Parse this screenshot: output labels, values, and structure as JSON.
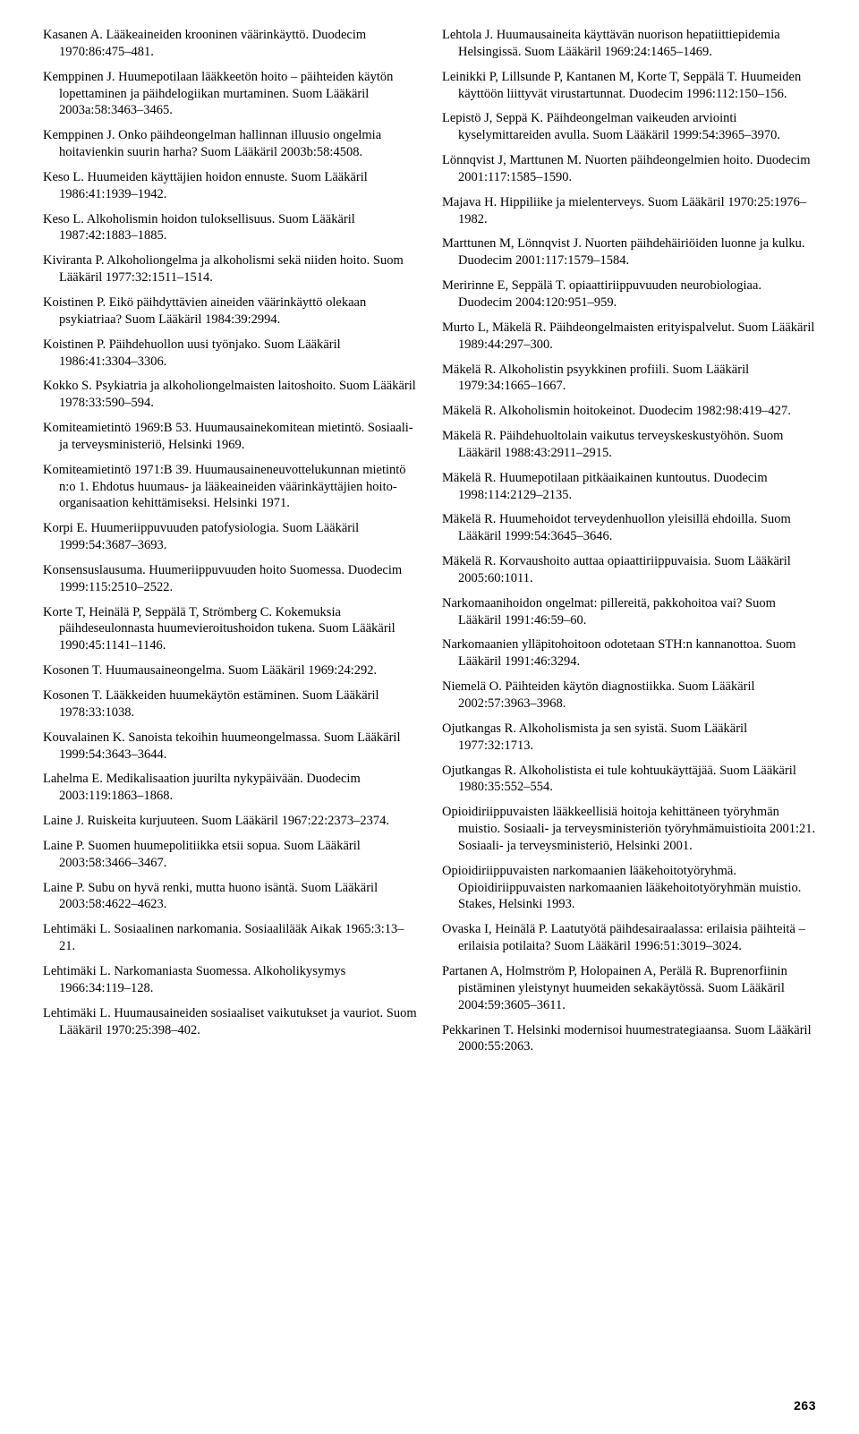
{
  "page_number": "263",
  "columns": {
    "left": [
      "Kasanen A. Lääkeaineiden krooninen väärinkäyttö. Duodecim 1970:86:475–481.",
      "Kemppinen J. Huumepotilaan lääkkeetön hoito – päihteiden käytön lopettaminen ja päihdelogiikan murtaminen. Suom Lääkäril 2003a:58:3463–3465.",
      "Kemppinen J. Onko päihdeongelman hallinnan illuusio ongelmia hoitavienkin suurin harha? Suom Lääkäril 2003b:58:4508.",
      "Keso L. Huumeiden käyttäjien hoidon ennuste. Suom Lääkäril 1986:41:1939–1942.",
      "Keso L. Alkoholismin hoidon tuloksellisuus. Suom Lääkäril 1987:42:1883–1885.",
      "Kiviranta P. Alkoholiongelma ja alkoholismi sekä niiden hoito. Suom Lääkäril 1977:32:1511–1514.",
      "Koistinen P. Eikö päihdyttävien aineiden väärinkäyttö olekaan psykiatriaa? Suom Lääkäril 1984:39:2994.",
      "Koistinen P. Päihdehuollon uusi työnjako. Suom Lääkäril 1986:41:3304–3306.",
      "Kokko S. Psykiatria ja alkoholiongelmaisten laitoshoito. Suom Lääkäril 1978:33:590–594.",
      "Komiteamietintö 1969:B 53. Huumausainekomitean mietintö. Sosiaali- ja terveysministeriö, Helsinki 1969.",
      "Komiteamietintö 1971:B 39. Huumausaineneuvottelukunnan mietintö n:o 1. Ehdotus huumaus- ja lääkeaineiden väärinkäyttäjien hoito-organisaation kehittämiseksi. Helsinki 1971.",
      "Korpi E. Huumeriippuvuuden patofysiologia. Suom Lääkäril 1999:54:3687–3693.",
      "Konsensuslausuma. Huumeriippuvuuden hoito Suomessa. Duodecim 1999:115:2510–2522.",
      "Korte T, Heinälä P, Seppälä T, Strömberg C. Kokemuksia päihdeseulonnasta huumevieroitushoidon tukena. Suom Lääkäril 1990:45:1141–1146.",
      "Kosonen T. Huumausaineongelma. Suom Lääkäril 1969:24:292.",
      "Kosonen T. Lääkkeiden huumekäytön estäminen. Suom Lääkäril 1978:33:1038.",
      "Kouvalainen K. Sanoista tekoihin huumeongelmassa. Suom Lääkäril 1999:54:3643–3644.",
      "Lahelma E. Medikalisaation juurilta nykypäivään. Duodecim 2003:119:1863–1868.",
      "Laine J. Ruiskeita kurjuuteen. Suom Lääkäril 1967:22:2373–2374.",
      "Laine P. Suomen huumepolitiikka etsii sopua. Suom Lääkäril 2003:58:3466–3467.",
      "Laine P. Subu on hyvä renki, mutta huono isäntä. Suom Lääkäril 2003:58:4622–4623.",
      "Lehtimäki L. Sosiaalinen narkomania. Sosiaalilääk Aikak 1965:3:13–21.",
      "Lehtimäki L. Narkomaniasta Suomessa. Alkoholikysymys 1966:34:119–128.",
      "Lehtimäki L. Huumausaineiden sosiaaliset vaikutukset ja vauriot. Suom Lääkäril 1970:25:398–402."
    ],
    "right": [
      "Lehtola J. Huumausaineita käyttävän nuorison hepatiittiepidemia Helsingissä. Suom Lääkäril 1969:24:1465–1469.",
      "Leinikki P, Lillsunde P, Kantanen M, Korte T, Seppälä T. Huumeiden käyttöön liittyvät virustartunnat. Duodecim 1996:112:150–156.",
      "Lepistö J, Seppä K. Päihdeongelman vaikeuden arviointi kyselymittareiden avulla. Suom Lääkäril 1999:54:3965–3970.",
      "Lönnqvist J, Marttunen M. Nuorten päihdeongelmien hoito. Duodecim 2001:117:1585–1590.",
      "Majava H. Hippiliike ja mielenterveys. Suom Lääkäril 1970:25:1976–1982.",
      "Marttunen M, Lönnqvist J. Nuorten päihdehäiriöiden luonne ja kulku. Duodecim 2001:117:1579–1584.",
      "Meririnne E, Seppälä T. opiaattiriippuvuuden neurobiologiaa. Duodecim 2004:120:951–959.",
      "Murto L, Mäkelä R. Päihdeongelmaisten erityispalvelut. Suom Lääkäril 1989:44:297–300.",
      "Mäkelä R. Alkoholistin psyykkinen profiili. Suom Lääkäril 1979:34:1665–1667.",
      "Mäkelä R. Alkoholismin hoitokeinot. Duodecim 1982:98:419–427.",
      "Mäkelä R. Päihdehuoltolain vaikutus terveyskeskustyöhön. Suom Lääkäril 1988:43:2911–2915.",
      "Mäkelä R. Huumepotilaan pitkäaikainen kuntoutus. Duodecim 1998:114:2129–2135.",
      "Mäkelä R. Huumehoidot terveydenhuollon yleisillä ehdoilla. Suom Lääkäril 1999:54:3645–3646.",
      "Mäkelä R. Korvaushoito auttaa opiaattiriippuvaisia. Suom Lääkäril 2005:60:1011.",
      "Narkomaanihoidon ongelmat: pillereitä, pakkohoitoa vai? Suom Lääkäril 1991:46:59–60.",
      "Narkomaanien ylläpitohoitoon odotetaan STH:n kannanottoa. Suom Lääkäril 1991:46:3294.",
      "Niemelä O. Päihteiden käytön diagnostiikka. Suom Lääkäril 2002:57:3963–3968.",
      "Ojutkangas R. Alkoholismista ja sen syistä. Suom Lääkäril 1977:32:1713.",
      "Ojutkangas R. Alkoholistista ei tule kohtuukäyttäjää. Suom Lääkäril 1980:35:552–554.",
      "Opioidiriippuvaisten lääkkeellisiä hoitoja kehittäneen työryhmän muistio. Sosiaali- ja terveysministeriön työryhmämuistioita 2001:21. Sosiaali- ja terveysministeriö, Helsinki 2001.",
      "Opioidiriippuvaisten narkomaanien lääkehoitotyöryhmä. Opioidiriippuvaisten narkomaanien lääkehoitotyöryhmän muistio. Stakes, Helsinki 1993.",
      "Ovaska I, Heinälä P. Laatutyötä päihdesairaalassa: erilaisia päihteitä – erilaisia potilaita? Suom Lääkäril 1996:51:3019–3024.",
      "Partanen A, Holmström P, Holopainen A, Perälä R. Buprenorfiinin pistäminen yleistynyt huumeiden sekakäytössä. Suom Lääkäril 2004:59:3605–3611.",
      "Pekkarinen T. Helsinki modernisoi huumestrategiaansa. Suom Lääkäril 2000:55:2063."
    ]
  }
}
